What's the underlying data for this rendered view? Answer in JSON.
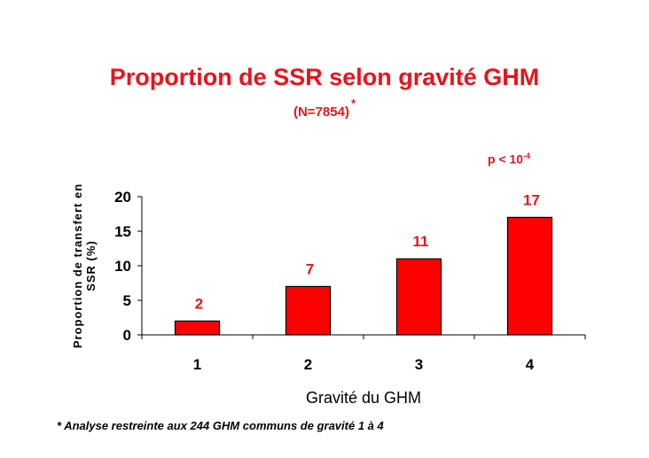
{
  "title": "Proportion de SSR selon gravité GHM",
  "subtitle": "(N=7854)",
  "subtitle_mark": "*",
  "p_value_text": "p < 10",
  "p_value_exponent": "-4",
  "footnote": "* Analyse restreinte aux 244 GHM communs de gravité 1 à 4",
  "colors": {
    "bar": "#ff0000",
    "accent_text": "#e8141b"
  },
  "chart_data": {
    "type": "bar",
    "categories": [
      "1",
      "2",
      "3",
      "4"
    ],
    "values": [
      2,
      7,
      11,
      17
    ],
    "title": "Proportion de SSR selon gravité GHM",
    "xlabel": "Gravité du GHM",
    "ylabel_lines": [
      "Proportion de transfert en",
      "SSR (%)"
    ],
    "ylim": [
      0,
      20
    ],
    "yticks": [
      0,
      5,
      10,
      15,
      20
    ],
    "data_labels": [
      "2",
      "7",
      "11",
      "17"
    ],
    "grid": false,
    "legend": "none"
  }
}
